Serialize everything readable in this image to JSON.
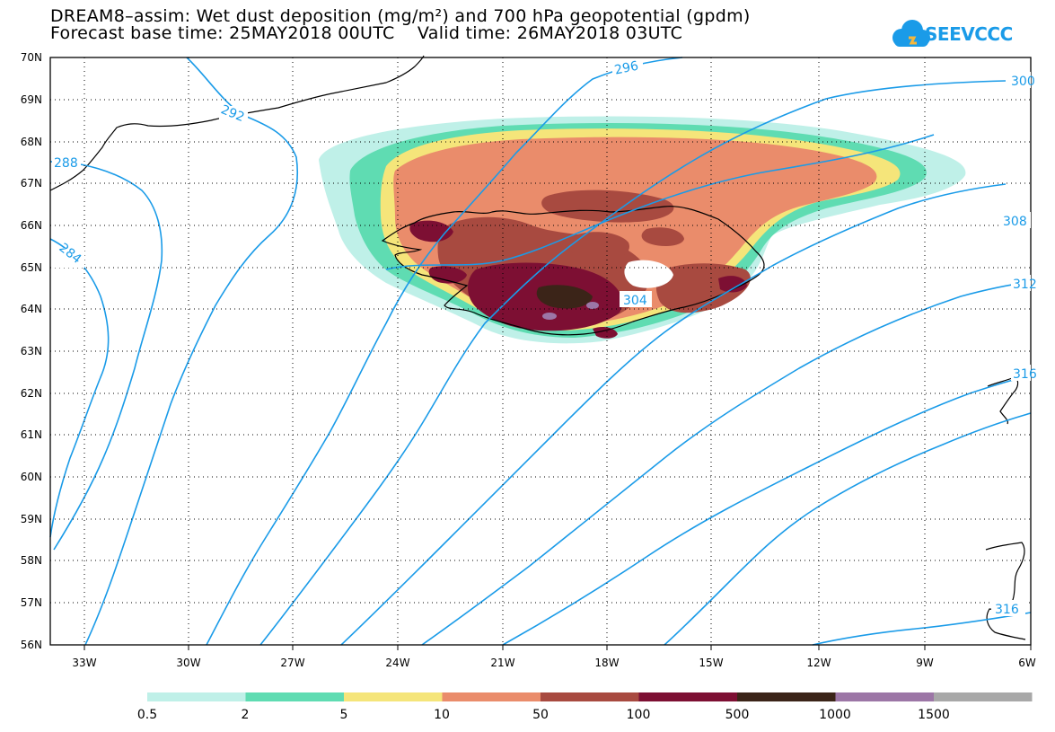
{
  "title_line1": "DREAM8–assim: Wet dust deposition (mg/m²) and 700 hPa geopotential (gpdm)",
  "title_line2": "Forecast base time: 25MAY2018 00UTC    Valid time: 26MAY2018 03UTC",
  "logo_text": "SEEVCCC",
  "lat_labels": [
    "70N",
    "69N",
    "68N",
    "67N",
    "66N",
    "65N",
    "64N",
    "63N",
    "62N",
    "61N",
    "60N",
    "59N",
    "58N",
    "57N",
    "56N"
  ],
  "lon_labels": [
    "33W",
    "30W",
    "27W",
    "24W",
    "21W",
    "18W",
    "15W",
    "12W",
    "9W",
    "6W"
  ],
  "contour_labels": [
    "292",
    "296",
    "288",
    "284",
    "300",
    "304",
    "308",
    "312",
    "316",
    "316"
  ],
  "legend_labels": [
    "0.5",
    "2",
    "5",
    "10",
    "50",
    "100",
    "500",
    "1000",
    "1500"
  ],
  "legend_colors": [
    "#bff0e8",
    "#5fdcb2",
    "#f5e57a",
    "#ea8c6b",
    "#a84a40",
    "#7d0f33",
    "#3b2418",
    "#9c76a6",
    "#a8a8a8"
  ],
  "contour_color": "#1a9be8"
}
